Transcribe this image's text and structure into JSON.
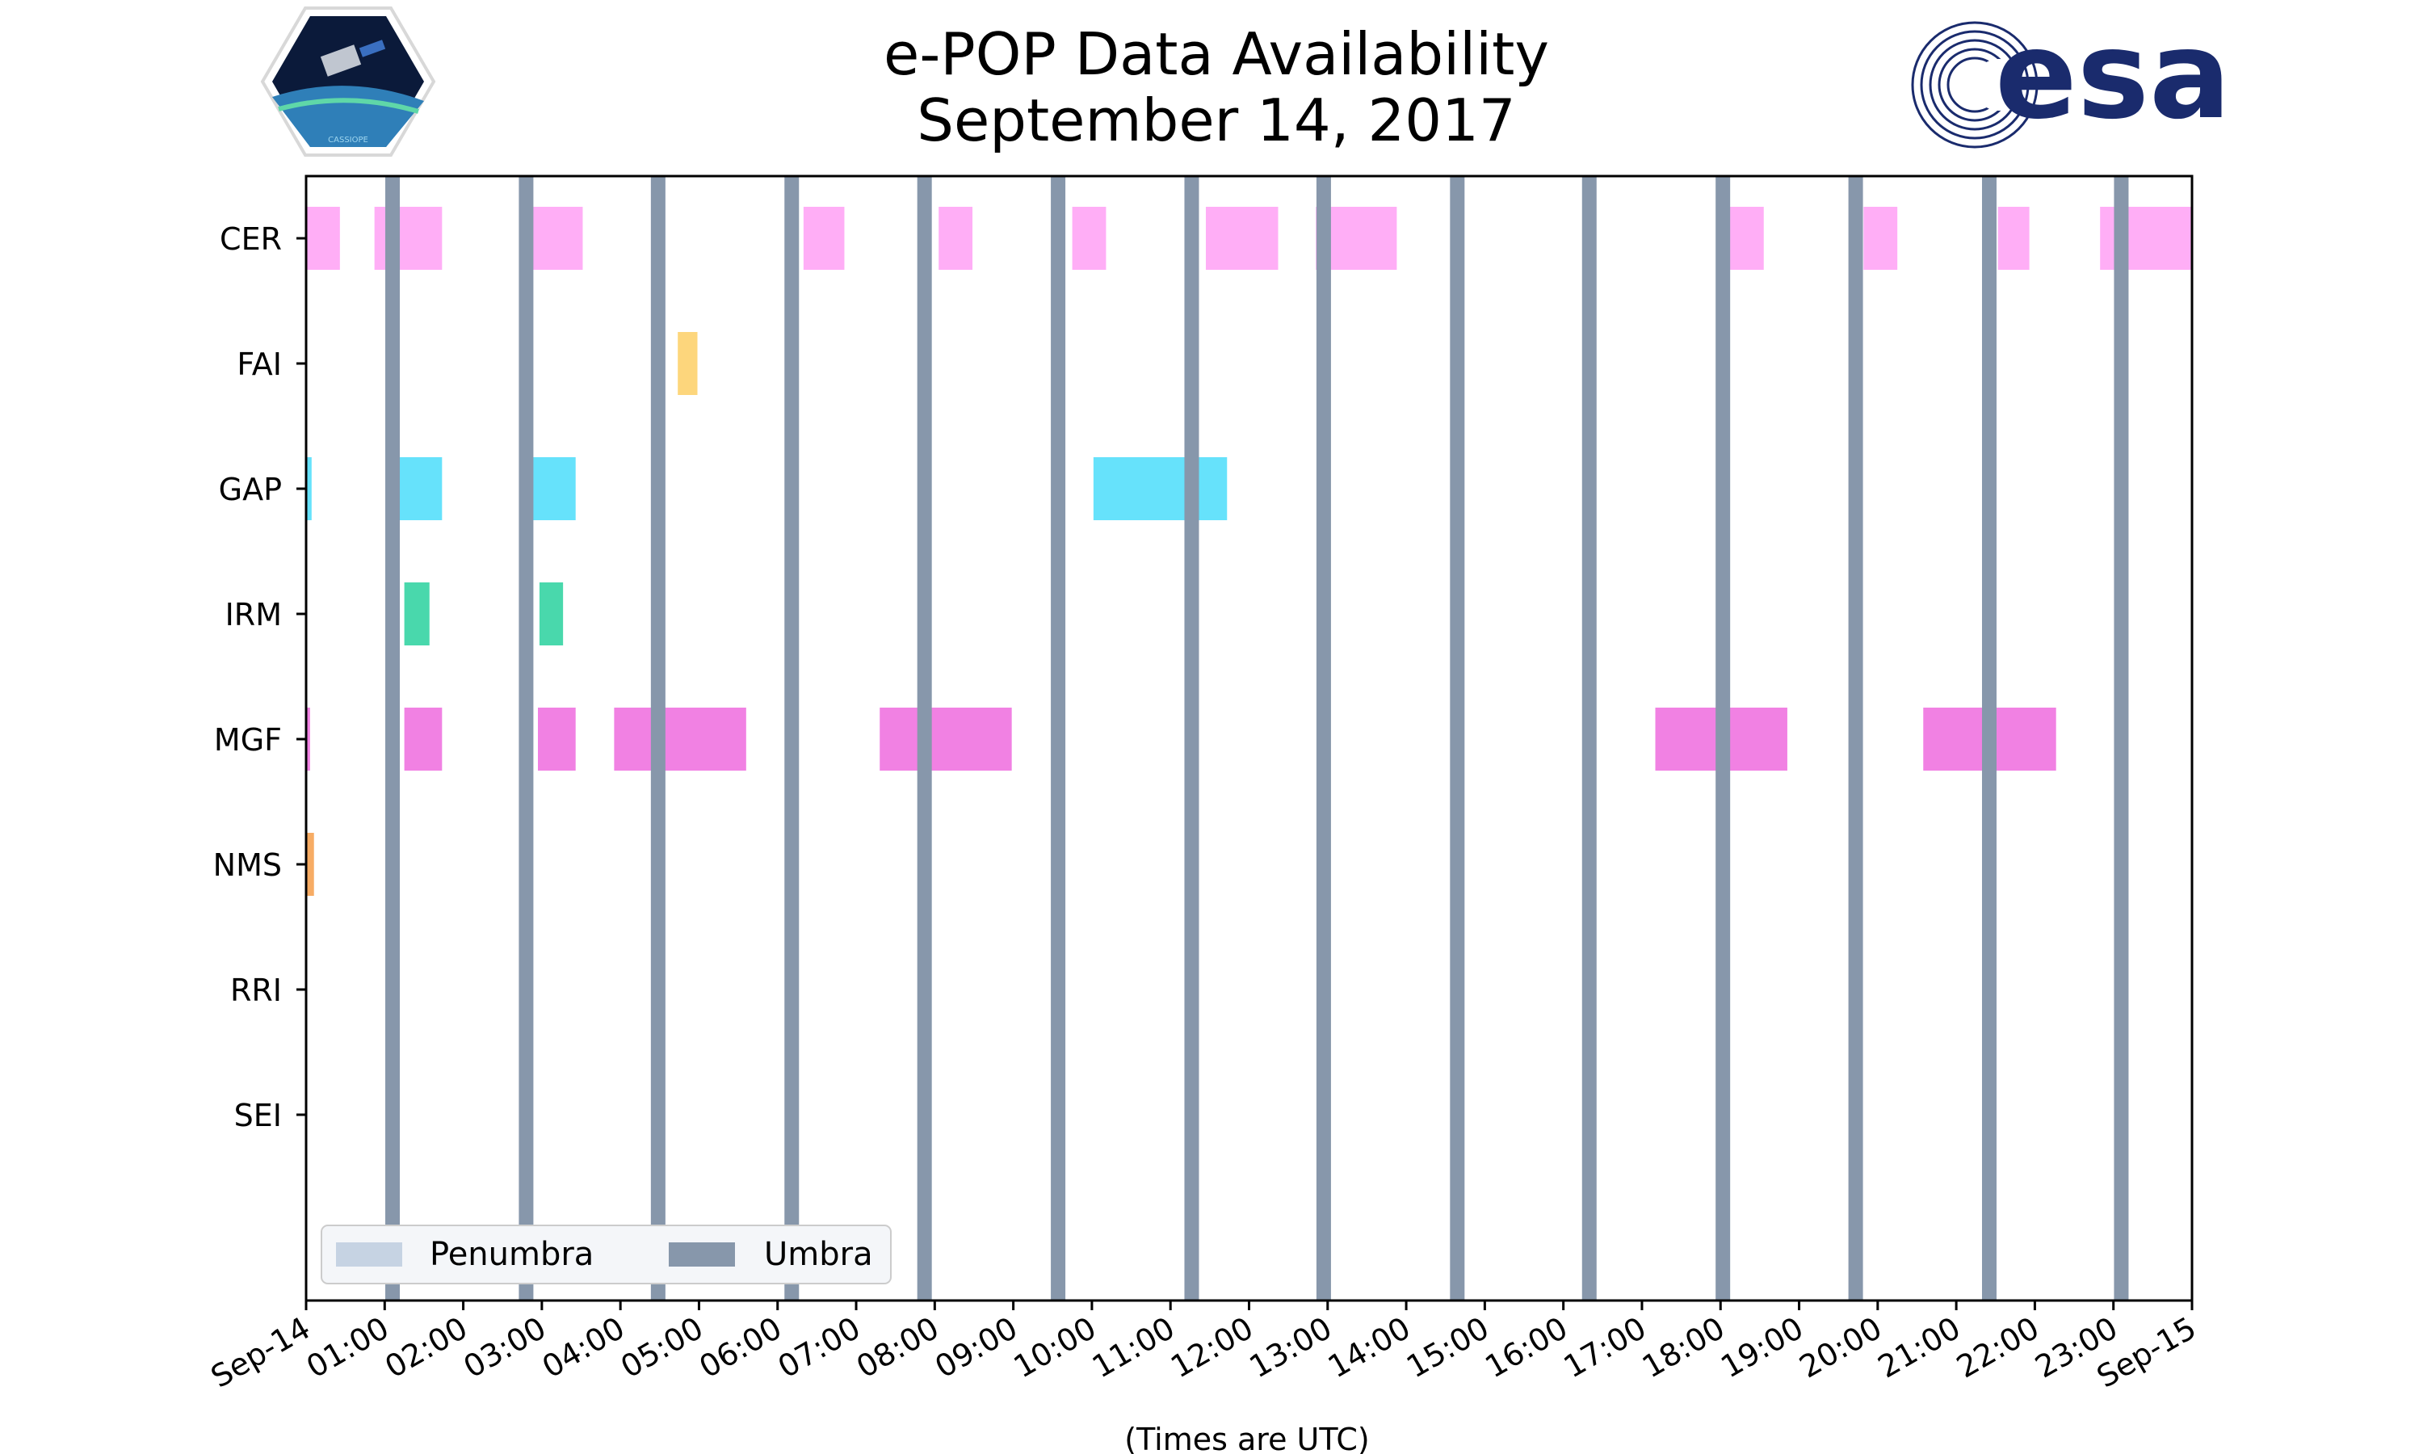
{
  "chart_data": {
    "type": "timeline",
    "title_lines": [
      "e-POP Data Availability",
      "September 14, 2017"
    ],
    "xlabel": "(Times are UTC)",
    "x_range_hours": [
      0,
      24
    ],
    "x_tick_labels": [
      "Sep-14",
      "01:00",
      "02:00",
      "03:00",
      "04:00",
      "05:00",
      "06:00",
      "07:00",
      "08:00",
      "09:00",
      "10:00",
      "11:00",
      "12:00",
      "13:00",
      "14:00",
      "15:00",
      "16:00",
      "17:00",
      "18:00",
      "19:00",
      "20:00",
      "21:00",
      "22:00",
      "23:00",
      "Sep-15"
    ],
    "instruments": [
      "CER",
      "FAI",
      "GAP",
      "IRM",
      "MGF",
      "NMS",
      "RRI",
      "SEI"
    ],
    "colors": {
      "CER": "#ffaaf5",
      "FAI": "#fdd475",
      "GAP": "#5ee0fb",
      "IRM": "#3fd6a8",
      "MGF": "#f07ae2",
      "NMS": "#f7a85c",
      "umbra": "#8797ab",
      "penumbra": "#c6d3e3"
    },
    "intervals": {
      "CER": [
        [
          0.0,
          0.43
        ],
        [
          0.87,
          1.73
        ],
        [
          2.73,
          3.52
        ],
        [
          6.33,
          6.85
        ],
        [
          8.05,
          8.48
        ],
        [
          9.75,
          10.18
        ],
        [
          11.45,
          12.37
        ],
        [
          12.85,
          13.88
        ],
        [
          18.12,
          18.55
        ],
        [
          19.82,
          20.25
        ],
        [
          21.53,
          21.93
        ],
        [
          22.83,
          24.0
        ]
      ],
      "FAI": [
        [
          4.73,
          4.98
        ]
      ],
      "GAP": [
        [
          0.0,
          0.07
        ],
        [
          1.12,
          1.73
        ],
        [
          2.8,
          3.43
        ],
        [
          10.02,
          11.72
        ]
      ],
      "IRM": [
        [
          1.25,
          1.57
        ],
        [
          2.97,
          3.27
        ]
      ],
      "MGF": [
        [
          0.0,
          0.05
        ],
        [
          1.25,
          1.73
        ],
        [
          2.95,
          3.43
        ],
        [
          3.92,
          5.6
        ],
        [
          7.3,
          8.98
        ],
        [
          17.17,
          18.85
        ],
        [
          20.58,
          22.27
        ]
      ],
      "NMS": [
        [
          0.0,
          0.1
        ]
      ],
      "RRI": [],
      "SEI": []
    },
    "umbra_centers": [
      1.1,
      2.8,
      4.48,
      6.18,
      7.87,
      9.57,
      11.27,
      12.95,
      14.65,
      16.33,
      18.03,
      19.72,
      21.42,
      23.1
    ],
    "legend": [
      {
        "label": "Penumbra",
        "color_key": "penumbra"
      },
      {
        "label": "Umbra",
        "color_key": "umbra"
      }
    ]
  },
  "logos": {
    "cassiope_text": "CASSIOPE",
    "esa_text": "esa",
    "esa_color": "#1a2b6d"
  }
}
